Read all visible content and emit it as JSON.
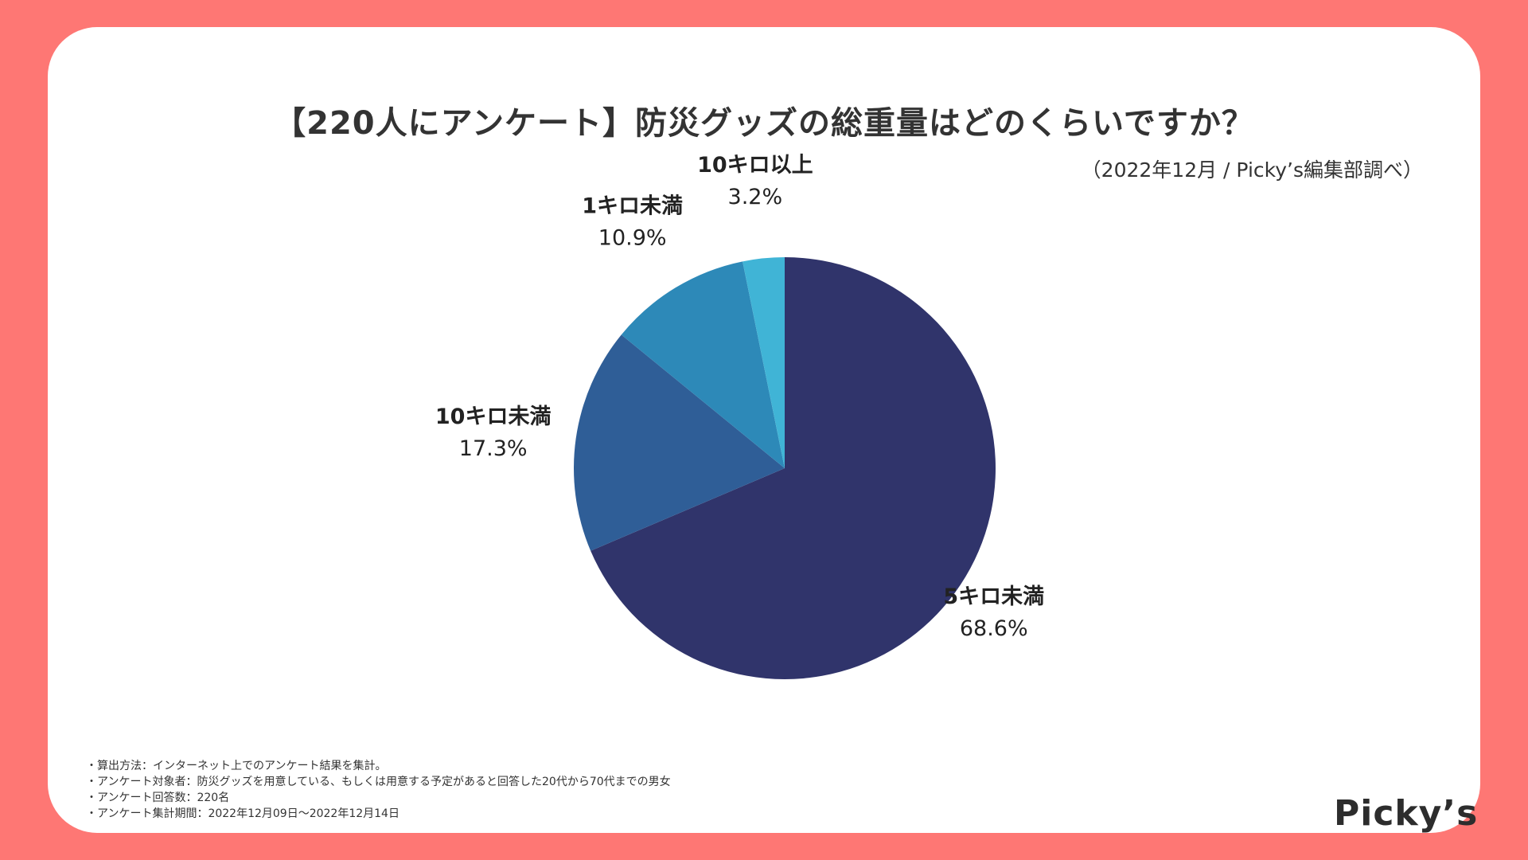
{
  "page": {
    "title": "【220人にアンケート】防災グッズの総重量はどのくらいですか？",
    "subtitle": "（2022年12月 / Picky’s編集部調べ）",
    "notes": [
      "・算出方法：インターネット上でのアンケート結果を集計。",
      "・アンケート対象者：防災グッズを用意している、もしくは用意する予定があると回答した20代から70代までの男女",
      "・アンケート回答数：220名",
      "・アンケート集計期間：2022年12月09日〜2022年12月14日"
    ],
    "logo": "Picky’s"
  },
  "colors": {
    "background": "#fe7774",
    "card": "#ffffff",
    "text": "#333333"
  },
  "chart_data": {
    "type": "pie",
    "title": "【220人にアンケート】防災グッズの総重量はどのくらいですか？",
    "subtitle": "（2022年12月 / Picky’s編集部調べ）",
    "start": "12 o'clock",
    "direction": "clockwise",
    "slices": [
      {
        "label": "5キロ未満",
        "value": 68.6,
        "value_label": "68.6%",
        "color": "#30346b"
      },
      {
        "label": "10キロ未満",
        "value": 17.3,
        "value_label": "17.3%",
        "color": "#2f5e97"
      },
      {
        "label": "1キロ未満",
        "value": 10.9,
        "value_label": "10.9%",
        "color": "#2d89b8"
      },
      {
        "label": "10キロ以上",
        "value": 3.2,
        "value_label": "3.2%",
        "color": "#40b4d6"
      }
    ]
  }
}
